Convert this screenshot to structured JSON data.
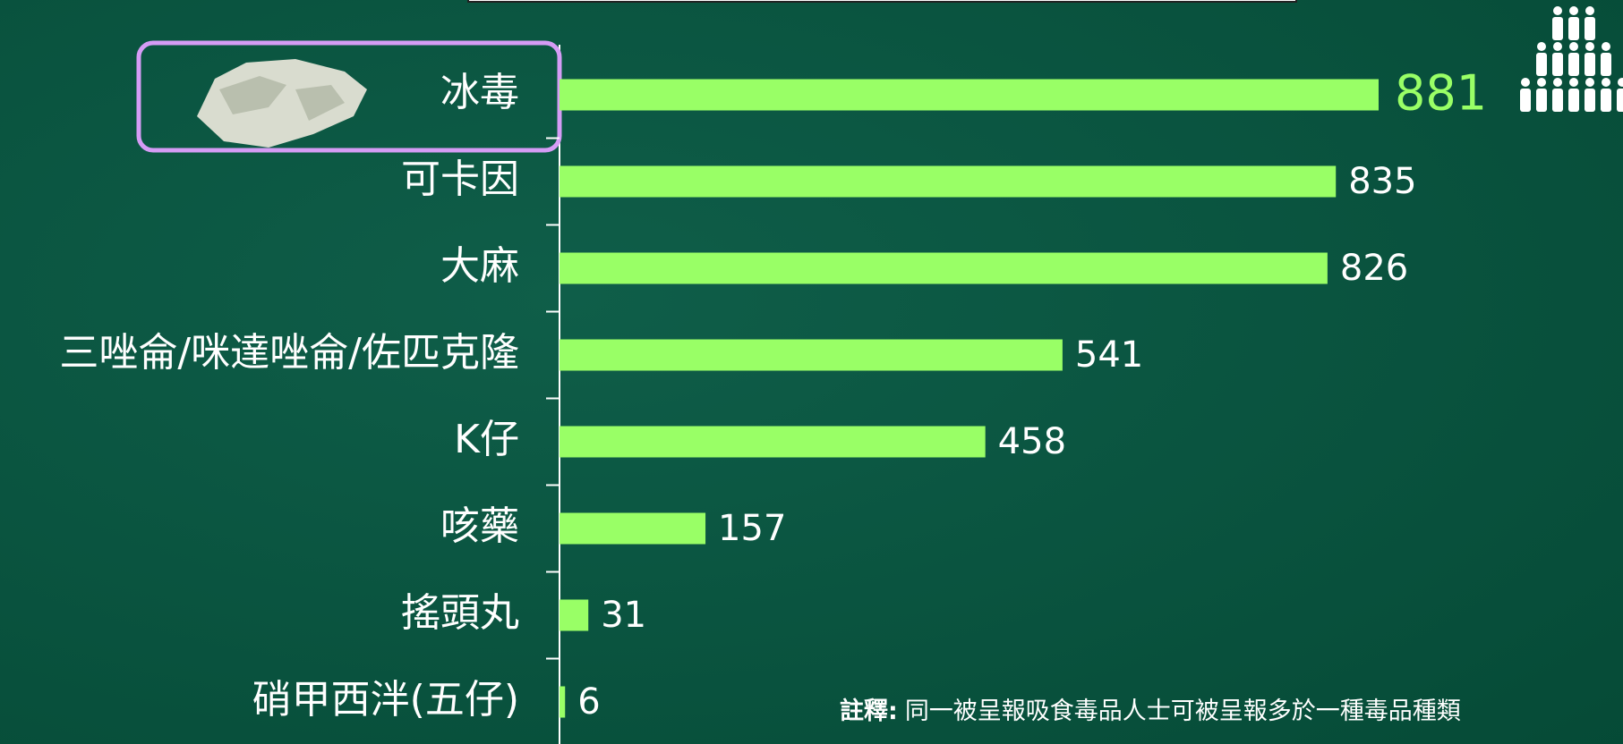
{
  "chart_data": {
    "type": "hbar",
    "categories": [
      "冰毒",
      "可卡因",
      "大麻",
      "三唑侖/咪達唑侖/佐匹克隆",
      "K仔",
      "咳藥",
      "搖頭丸",
      "硝甲西泮(五仔)"
    ],
    "values": [
      881,
      835,
      826,
      541,
      458,
      157,
      31,
      6
    ],
    "color": "#99ff66",
    "highlight_color": "#99ff66",
    "label_color": "#ffffff",
    "note": {
      "label": "註釋:",
      "text": "同一被呈報吸食毒品人士可被呈報多於一種毒品種類"
    }
  }
}
